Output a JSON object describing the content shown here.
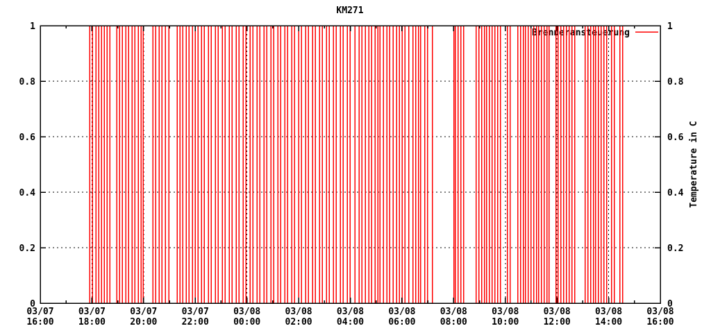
{
  "colors": {
    "series_red": "#ff0000",
    "grid": "#000000",
    "border": "#000000",
    "text": "#000000",
    "background": "#ffffff"
  },
  "chart_data": {
    "type": "impulse",
    "title": "KM271",
    "y2label": "Temperature in C",
    "grid": true,
    "ylim": [
      0,
      1
    ],
    "x_range_hours": 24,
    "x_start": "03/07 16:00",
    "x_end": "03/08 16:00",
    "yticks": [
      {
        "value": 0,
        "label": "0"
      },
      {
        "value": 0.2,
        "label": "0.2"
      },
      {
        "value": 0.4,
        "label": "0.4"
      },
      {
        "value": 0.6,
        "label": "0.6"
      },
      {
        "value": 0.8,
        "label": "0.8"
      },
      {
        "value": 1,
        "label": "1"
      }
    ],
    "xticks": [
      {
        "hour": 0,
        "date": "03/07",
        "time": "16:00"
      },
      {
        "hour": 2,
        "date": "03/07",
        "time": "18:00"
      },
      {
        "hour": 4,
        "date": "03/07",
        "time": "20:00"
      },
      {
        "hour": 6,
        "date": "03/07",
        "time": "22:00"
      },
      {
        "hour": 8,
        "date": "03/08",
        "time": "00:00"
      },
      {
        "hour": 10,
        "date": "03/08",
        "time": "02:00"
      },
      {
        "hour": 12,
        "date": "03/08",
        "time": "04:00"
      },
      {
        "hour": 14,
        "date": "03/08",
        "time": "06:00"
      },
      {
        "hour": 16,
        "date": "03/08",
        "time": "08:00"
      },
      {
        "hour": 18,
        "date": "03/08",
        "time": "10:00"
      },
      {
        "hour": 20,
        "date": "03/08",
        "time": "12:00"
      },
      {
        "hour": 22,
        "date": "03/08",
        "time": "14:00"
      },
      {
        "hour": 24,
        "date": "03/08",
        "time": "16:00"
      }
    ],
    "minor_xtick_every_hours": 1,
    "legend": {
      "position": "top-right",
      "entries": [
        {
          "label": "Brenneransteuerung",
          "color": "#ff0000"
        }
      ]
    },
    "series": [
      {
        "name": "Brenneransteuerung",
        "color": "#ff0000",
        "amplitude": 1,
        "pulse_hours_from_start": [
          1.91,
          2.018,
          2.152,
          2.26,
          2.368,
          2.475,
          2.583,
          2.691,
          2.96,
          3.067,
          3.175,
          3.309,
          3.417,
          3.552,
          3.659,
          3.794,
          3.901,
          3.982,
          4.359,
          4.466,
          4.601,
          4.708,
          4.843,
          4.977,
          5.3,
          5.408,
          5.515,
          5.65,
          5.757,
          5.892,
          6.0,
          6.107,
          6.242,
          6.349,
          6.511,
          6.618,
          6.78,
          6.887,
          7.048,
          7.156,
          7.317,
          7.425,
          7.586,
          7.694,
          7.855,
          7.963,
          8.124,
          8.232,
          8.393,
          8.501,
          8.662,
          8.77,
          8.931,
          9.039,
          9.2,
          9.308,
          9.469,
          9.577,
          9.738,
          9.846,
          10.007,
          10.115,
          10.276,
          10.384,
          10.545,
          10.653,
          10.814,
          10.922,
          11.083,
          11.191,
          11.352,
          11.46,
          11.621,
          11.729,
          11.89,
          11.998,
          12.186,
          12.348,
          12.455,
          12.59,
          12.724,
          12.832,
          12.966,
          13.074,
          13.155,
          13.289,
          13.424,
          13.531,
          13.666,
          13.8,
          13.908,
          14.015,
          14.123,
          14.258,
          14.419,
          14.527,
          14.634,
          14.715,
          14.876,
          14.984,
          15.172,
          16.006,
          16.06,
          16.168,
          16.275,
          16.383,
          16.867,
          16.975,
          17.082,
          17.19,
          17.271,
          17.378,
          17.486,
          17.594,
          17.701,
          17.809,
          18.078,
          18.186,
          18.482,
          18.589,
          18.697,
          18.778,
          18.885,
          18.993,
          19.1,
          19.208,
          19.289,
          19.396,
          19.504,
          19.612,
          19.692,
          19.961,
          20.042,
          20.15,
          20.257,
          20.365,
          20.472,
          20.58,
          20.688,
          21.091,
          21.199,
          21.307,
          21.414,
          21.495,
          21.603,
          21.71,
          21.818,
          21.925,
          22.114,
          22.221,
          22.437,
          22.544
        ]
      }
    ]
  }
}
